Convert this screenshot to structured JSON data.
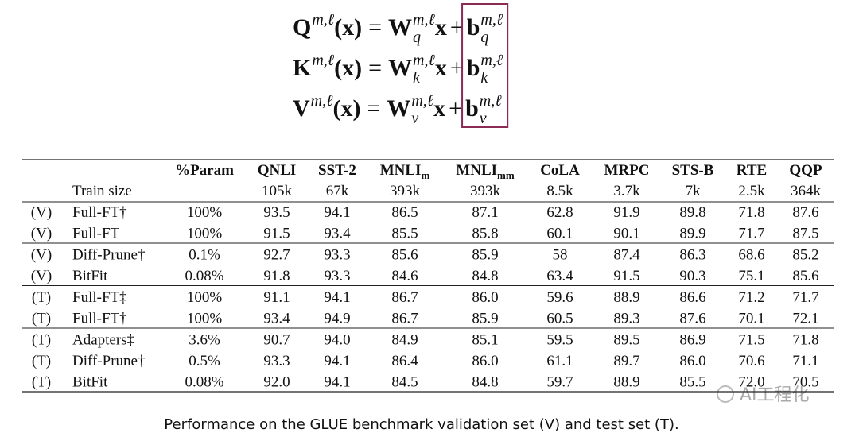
{
  "equations": [
    {
      "lhs": "Q",
      "lhs_sup": "m,ℓ",
      "arg": "(x)",
      "eq": "=",
      "weight": "W",
      "weight_sub": "q",
      "weight_sup": "m,ℓ",
      "input": "x",
      "plus": "+",
      "bias": "b",
      "bias_sub": "q",
      "bias_sup": "m,ℓ"
    },
    {
      "lhs": "K",
      "lhs_sup": "m,ℓ",
      "arg": "(x)",
      "eq": "=",
      "weight": "W",
      "weight_sub": "k",
      "weight_sup": "m,ℓ",
      "input": "x",
      "plus": "+",
      "bias": "b",
      "bias_sub": "k",
      "bias_sup": "m,ℓ"
    },
    {
      "lhs": "V",
      "lhs_sup": "m,ℓ",
      "arg": "(x)",
      "eq": "=",
      "weight": "W",
      "weight_sub": "v",
      "weight_sup": "m,ℓ",
      "input": "x",
      "plus": "+",
      "bias": "b",
      "bias_sub": "v",
      "bias_sup": "m,ℓ"
    }
  ],
  "table": {
    "header": [
      {
        "text": "%Param"
      },
      {
        "text": "QNLI"
      },
      {
        "text": "SST-2"
      },
      {
        "text": "MNLI",
        "sub": "m"
      },
      {
        "text": "MNLI",
        "sub": "mm"
      },
      {
        "text": "CoLA"
      },
      {
        "text": "MRPC"
      },
      {
        "text": "STS-B"
      },
      {
        "text": "RTE"
      },
      {
        "text": "QQP"
      }
    ],
    "train_size": {
      "label": "Train size",
      "values": [
        "105k",
        "67k",
        "393k",
        "393k",
        "8.5k",
        "3.7k",
        "7k",
        "2.5k",
        "364k"
      ]
    },
    "groups": [
      {
        "rows": [
          [
            "(V)",
            "Full-FT†",
            "100%",
            "93.5",
            "94.1",
            "86.5",
            "87.1",
            "62.8",
            "91.9",
            "89.8",
            "71.8",
            "87.6"
          ],
          [
            "(V)",
            "Full-FT",
            "100%",
            "91.5",
            "93.4",
            "85.5",
            "85.8",
            "60.1",
            "90.1",
            "89.9",
            "71.7",
            "87.5"
          ]
        ]
      },
      {
        "rows": [
          [
            "(V)",
            "Diff-Prune†",
            "0.1%",
            "92.7",
            "93.3",
            "85.6",
            "85.9",
            "58",
            "87.4",
            "86.3",
            "68.6",
            "85.2"
          ],
          [
            "(V)",
            "BitFit",
            "0.08%",
            "91.8",
            "93.3",
            "84.6",
            "84.8",
            "63.4",
            "91.5",
            "90.3",
            "75.1",
            "85.6"
          ]
        ]
      },
      {
        "rows": [
          [
            "(T)",
            "Full-FT‡",
            "100%",
            "91.1",
            "94.1",
            "86.7",
            "86.0",
            "59.6",
            "88.9",
            "86.6",
            "71.2",
            "71.7"
          ],
          [
            "(T)",
            "Full-FT†",
            "100%",
            "93.4",
            "94.9",
            "86.7",
            "85.9",
            "60.5",
            "89.3",
            "87.6",
            "70.1",
            "72.1"
          ]
        ]
      },
      {
        "rows": [
          [
            "(T)",
            "Adapters‡",
            "3.6%",
            "90.7",
            "94.0",
            "84.9",
            "85.1",
            "59.5",
            "89.5",
            "86.9",
            "71.5",
            "71.8"
          ],
          [
            "(T)",
            "Diff-Prune†",
            "0.5%",
            "93.3",
            "94.1",
            "86.4",
            "86.0",
            "61.1",
            "89.7",
            "86.0",
            "70.6",
            "71.1"
          ],
          [
            "(T)",
            "BitFit",
            "0.08%",
            "92.0",
            "94.1",
            "84.5",
            "84.8",
            "59.7",
            "88.9",
            "85.5",
            "72.0",
            "70.5"
          ]
        ]
      }
    ]
  },
  "caption": "Performance on the GLUE benchmark validation set (V) and test set (T).",
  "watermark": "AI工程化"
}
